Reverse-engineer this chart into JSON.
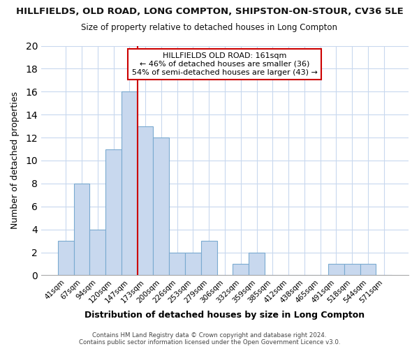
{
  "title": "HILLFIELDS, OLD ROAD, LONG COMPTON, SHIPSTON-ON-STOUR, CV36 5LE",
  "subtitle": "Size of property relative to detached houses in Long Compton",
  "xlabel": "Distribution of detached houses by size in Long Compton",
  "ylabel": "Number of detached properties",
  "bar_labels": [
    "41sqm",
    "67sqm",
    "94sqm",
    "120sqm",
    "147sqm",
    "173sqm",
    "200sqm",
    "226sqm",
    "253sqm",
    "279sqm",
    "306sqm",
    "332sqm",
    "359sqm",
    "385sqm",
    "412sqm",
    "438sqm",
    "465sqm",
    "491sqm",
    "518sqm",
    "544sqm",
    "571sqm"
  ],
  "bar_values": [
    3,
    8,
    4,
    11,
    16,
    13,
    12,
    2,
    2,
    3,
    0,
    1,
    2,
    0,
    0,
    0,
    0,
    1,
    1,
    1,
    0
  ],
  "bar_color": "#c8d8ee",
  "bar_edge_color": "#7aaad0",
  "vline_x_index": 4.5,
  "vline_color": "#cc0000",
  "annotation_title": "HILLFIELDS OLD ROAD: 161sqm",
  "annotation_line1": "← 46% of detached houses are smaller (36)",
  "annotation_line2": "54% of semi-detached houses are larger (43) →",
  "annotation_box_color": "#ffffff",
  "annotation_box_edge": "#cc0000",
  "ylim": [
    0,
    20
  ],
  "yticks": [
    0,
    2,
    4,
    6,
    8,
    10,
    12,
    14,
    16,
    18,
    20
  ],
  "grid_color": "#c8d8ee",
  "background_color": "#ffffff",
  "footer": "Contains HM Land Registry data © Crown copyright and database right 2024.\nContains public sector information licensed under the Open Government Licence v3.0."
}
